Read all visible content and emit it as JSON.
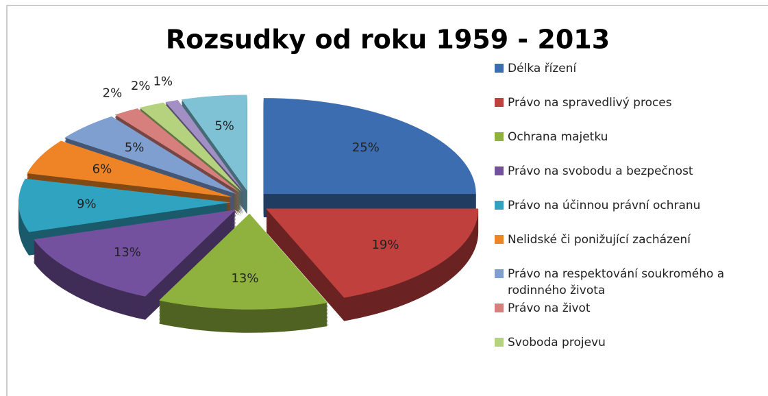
{
  "chart_data": {
    "type": "pie",
    "title": "Rozsudky od roku 1959 - 2013",
    "categories": [
      "Délka řízení",
      "Právo na spravedlivý proces",
      "Ochrana majetku",
      "Právo na svobodu a bezpečnost",
      "Právo na účinnou právní ochranu",
      "Nelidské či ponižující zacházení",
      "Právo na respektování soukromého a rodinného života",
      "Právo na život",
      "Svoboda projevu",
      null,
      null
    ],
    "values": [
      25,
      19,
      13,
      13,
      9,
      6,
      5,
      2,
      2,
      1,
      5
    ],
    "value_labels": [
      "25%",
      "19%",
      "13%",
      "13%",
      "9%",
      "6%",
      "5%",
      "2%",
      "2%",
      "1%",
      "5%"
    ],
    "colors": [
      "#3b6db0",
      "#c0403d",
      "#8fb23e",
      "#74519e",
      "#2fa3c0",
      "#ee8426",
      "#7e9fd0",
      "#d67f7c",
      "#b5d27f",
      "#a28fc4",
      "#7fc2d6"
    ],
    "legend": "right"
  }
}
